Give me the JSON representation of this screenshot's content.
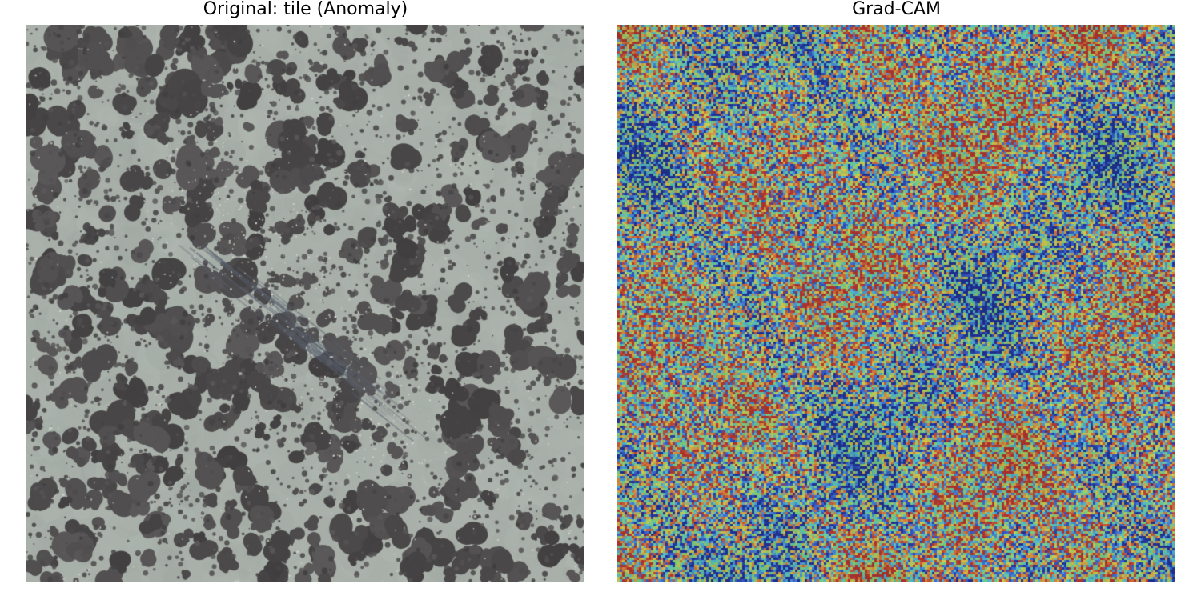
{
  "panels": {
    "left": {
      "title": "Original: tile (Anomaly)",
      "image_description_colors": {
        "background": "#a9b0aa",
        "spots": "#4e4c4d",
        "scratch": "#58606e"
      }
    },
    "right": {
      "title": "Grad-CAM",
      "colormap": "jet",
      "colormap_stops": [
        "#1f2f8f",
        "#3a62c9",
        "#4fb3c8",
        "#6fc47a",
        "#c9c34a",
        "#c9703a",
        "#a8322e"
      ]
    }
  }
}
